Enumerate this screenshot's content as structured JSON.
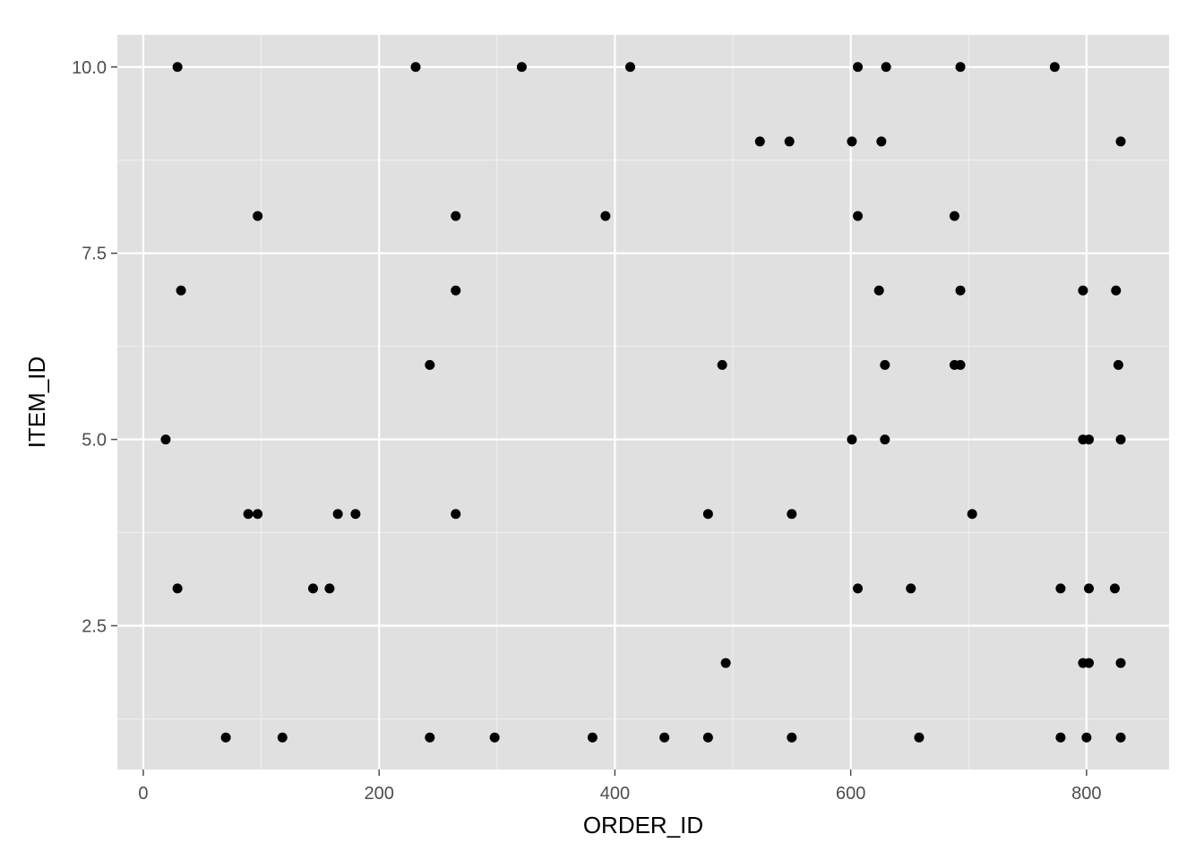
{
  "chart_data": {
    "type": "scatter",
    "xlabel": "ORDER_ID",
    "ylabel": "ITEM_ID",
    "xlim": [
      -22,
      870
    ],
    "ylim": [
      0.57,
      10.43
    ],
    "x_ticks": [
      0,
      200,
      400,
      600,
      800
    ],
    "x_tick_labels": [
      "0",
      "200",
      "400",
      "600",
      "800"
    ],
    "y_ticks": [
      2.5,
      5.0,
      7.5,
      10.0
    ],
    "y_tick_labels": [
      "2.5",
      "5.0",
      "7.5",
      "10.0"
    ],
    "grid": true,
    "point_color": "#000000",
    "panel_background": "#e0e0e0",
    "grid_color": "#ffffff",
    "points": [
      {
        "x": 29,
        "y": 10
      },
      {
        "x": 231,
        "y": 10
      },
      {
        "x": 321,
        "y": 10
      },
      {
        "x": 413,
        "y": 10
      },
      {
        "x": 606,
        "y": 10
      },
      {
        "x": 630,
        "y": 10
      },
      {
        "x": 693,
        "y": 10
      },
      {
        "x": 773,
        "y": 10
      },
      {
        "x": 523,
        "y": 9
      },
      {
        "x": 548,
        "y": 9
      },
      {
        "x": 601,
        "y": 9
      },
      {
        "x": 626,
        "y": 9
      },
      {
        "x": 829,
        "y": 9
      },
      {
        "x": 97,
        "y": 8
      },
      {
        "x": 265,
        "y": 8
      },
      {
        "x": 392,
        "y": 8
      },
      {
        "x": 606,
        "y": 8
      },
      {
        "x": 688,
        "y": 8
      },
      {
        "x": 32,
        "y": 7
      },
      {
        "x": 265,
        "y": 7
      },
      {
        "x": 624,
        "y": 7
      },
      {
        "x": 693,
        "y": 7
      },
      {
        "x": 797,
        "y": 7
      },
      {
        "x": 825,
        "y": 7
      },
      {
        "x": 243,
        "y": 6
      },
      {
        "x": 491,
        "y": 6
      },
      {
        "x": 629,
        "y": 6
      },
      {
        "x": 688,
        "y": 6
      },
      {
        "x": 693,
        "y": 6
      },
      {
        "x": 827,
        "y": 6
      },
      {
        "x": 19,
        "y": 5
      },
      {
        "x": 601,
        "y": 5
      },
      {
        "x": 629,
        "y": 5
      },
      {
        "x": 797,
        "y": 5
      },
      {
        "x": 802,
        "y": 5
      },
      {
        "x": 829,
        "y": 5
      },
      {
        "x": 89,
        "y": 4
      },
      {
        "x": 97,
        "y": 4
      },
      {
        "x": 165,
        "y": 4
      },
      {
        "x": 180,
        "y": 4
      },
      {
        "x": 265,
        "y": 4
      },
      {
        "x": 479,
        "y": 4
      },
      {
        "x": 550,
        "y": 4
      },
      {
        "x": 703,
        "y": 4
      },
      {
        "x": 29,
        "y": 3
      },
      {
        "x": 144,
        "y": 3
      },
      {
        "x": 158,
        "y": 3
      },
      {
        "x": 606,
        "y": 3
      },
      {
        "x": 651,
        "y": 3
      },
      {
        "x": 778,
        "y": 3
      },
      {
        "x": 802,
        "y": 3
      },
      {
        "x": 824,
        "y": 3
      },
      {
        "x": 494,
        "y": 2
      },
      {
        "x": 797,
        "y": 2
      },
      {
        "x": 802,
        "y": 2
      },
      {
        "x": 829,
        "y": 2
      },
      {
        "x": 70,
        "y": 1
      },
      {
        "x": 118,
        "y": 1
      },
      {
        "x": 243,
        "y": 1
      },
      {
        "x": 298,
        "y": 1
      },
      {
        "x": 381,
        "y": 1
      },
      {
        "x": 442,
        "y": 1
      },
      {
        "x": 479,
        "y": 1
      },
      {
        "x": 550,
        "y": 1
      },
      {
        "x": 658,
        "y": 1
      },
      {
        "x": 778,
        "y": 1
      },
      {
        "x": 800,
        "y": 1
      },
      {
        "x": 829,
        "y": 1
      }
    ]
  }
}
